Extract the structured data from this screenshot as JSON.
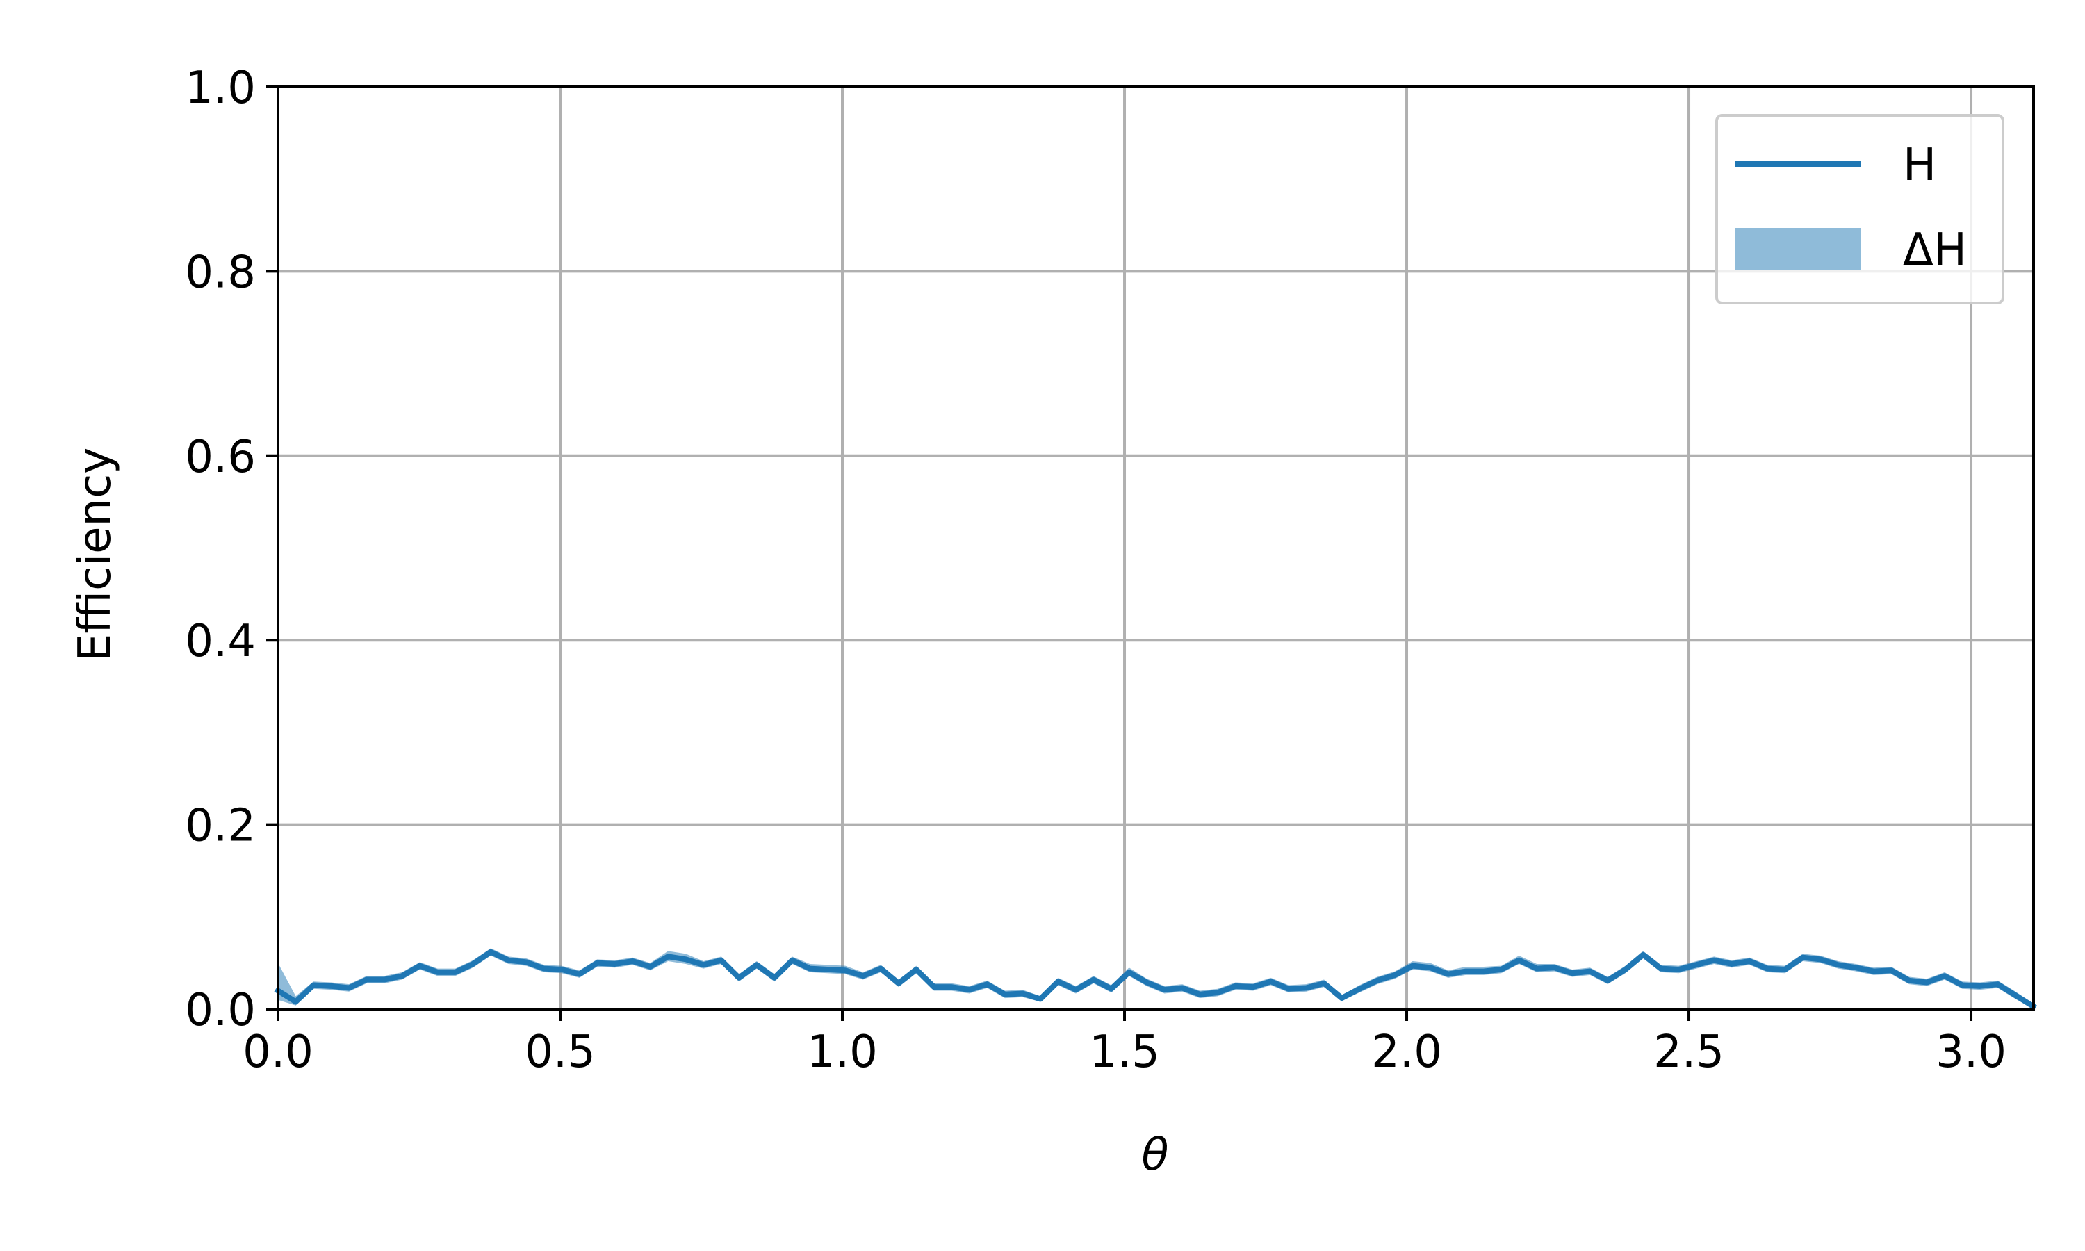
{
  "chart_data": {
    "type": "line",
    "title": "",
    "xlabel": "θ",
    "ylabel": "Efficiency",
    "xlim": [
      0,
      3.1108
    ],
    "ylim": [
      0,
      1
    ],
    "x_ticks": [
      0,
      0.5,
      1,
      1.5,
      2,
      2.5,
      3
    ],
    "x_tick_labels": [
      "0.0",
      "0.5",
      "1.0",
      "1.5",
      "2.0",
      "2.5",
      "3.0"
    ],
    "y_ticks": [
      0,
      0.2,
      0.4,
      0.6,
      0.8,
      1
    ],
    "y_tick_labels": [
      "0.0",
      "0.2",
      "0.4",
      "0.6",
      "0.8",
      "1.0"
    ],
    "grid": true,
    "legend_position": "top-right",
    "colors": {
      "line": "#1f77b4",
      "band": "#1f77b4",
      "grid": "#b0b0b0"
    },
    "x": [
      0,
      0.0314,
      0.0628,
      0.0942,
      0.1257,
      0.1571,
      0.1885,
      0.2199,
      0.2513,
      0.2827,
      0.3142,
      0.3456,
      0.377,
      0.4084,
      0.4398,
      0.4712,
      0.5027,
      0.5341,
      0.5655,
      0.5969,
      0.6283,
      0.6597,
      0.6912,
      0.7226,
      0.754,
      0.7854,
      0.8168,
      0.8482,
      0.8796,
      0.9111,
      0.9425,
      0.9739,
      1.0053,
      1.0367,
      1.0681,
      1.0996,
      1.131,
      1.1624,
      1.1938,
      1.2252,
      1.2566,
      1.2881,
      1.3195,
      1.3509,
      1.3823,
      1.4137,
      1.4451,
      1.4765,
      1.508,
      1.5394,
      1.5708,
      1.6022,
      1.6336,
      1.665,
      1.6965,
      1.7279,
      1.7593,
      1.7907,
      1.8221,
      1.8535,
      1.885,
      1.9164,
      1.9478,
      1.9792,
      2.0106,
      2.042,
      2.0735,
      2.1049,
      2.1363,
      2.1677,
      2.1991,
      2.2305,
      2.2619,
      2.2934,
      2.3248,
      2.3562,
      2.3876,
      2.419,
      2.4504,
      2.4819,
      2.5133,
      2.5447,
      2.5761,
      2.6075,
      2.6389,
      2.6704,
      2.7018,
      2.7332,
      2.7646,
      2.796,
      2.8274,
      2.8588,
      2.8903,
      2.9217,
      2.9531,
      2.9845,
      3.0159,
      3.0473,
      3.0788,
      3.1102
    ],
    "series": [
      {
        "name": "H",
        "values": [
          0.02,
          0.008,
          0.026,
          0.025,
          0.023,
          0.032,
          0.032,
          0.036,
          0.047,
          0.04,
          0.04,
          0.049,
          0.062,
          0.053,
          0.051,
          0.044,
          0.043,
          0.038,
          0.05,
          0.049,
          0.052,
          0.046,
          0.057,
          0.054,
          0.048,
          0.053,
          0.034,
          0.048,
          0.034,
          0.053,
          0.044,
          0.043,
          0.042,
          0.036,
          0.044,
          0.028,
          0.043,
          0.024,
          0.024,
          0.021,
          0.027,
          0.016,
          0.017,
          0.011,
          0.03,
          0.021,
          0.032,
          0.022,
          0.04,
          0.029,
          0.021,
          0.023,
          0.016,
          0.018,
          0.025,
          0.024,
          0.03,
          0.022,
          0.023,
          0.028,
          0.012,
          0.022,
          0.031,
          0.037,
          0.047,
          0.045,
          0.038,
          0.041,
          0.041,
          0.043,
          0.053,
          0.044,
          0.045,
          0.039,
          0.041,
          0.031,
          0.043,
          0.059,
          0.044,
          0.043,
          0.048,
          0.053,
          0.049,
          0.052,
          0.044,
          0.043,
          0.056,
          0.054,
          0.048,
          0.045,
          0.041,
          0.042,
          0.031,
          0.029,
          0.036,
          0.026,
          0.025,
          0.027,
          0.015,
          0.003
        ]
      },
      {
        "name": "ΔH",
        "lower": [
          0.01,
          0.004,
          0.022,
          0.021,
          0.019,
          0.028,
          0.028,
          0.032,
          0.043,
          0.036,
          0.036,
          0.045,
          0.058,
          0.049,
          0.047,
          0.04,
          0.039,
          0.034,
          0.046,
          0.045,
          0.048,
          0.042,
          0.052,
          0.049,
          0.044,
          0.049,
          0.03,
          0.044,
          0.03,
          0.049,
          0.04,
          0.039,
          0.038,
          0.032,
          0.04,
          0.024,
          0.039,
          0.02,
          0.02,
          0.017,
          0.023,
          0.012,
          0.013,
          0.008,
          0.026,
          0.017,
          0.028,
          0.018,
          0.036,
          0.025,
          0.017,
          0.019,
          0.012,
          0.014,
          0.021,
          0.02,
          0.026,
          0.018,
          0.019,
          0.024,
          0.009,
          0.018,
          0.027,
          0.033,
          0.043,
          0.041,
          0.034,
          0.037,
          0.037,
          0.039,
          0.049,
          0.04,
          0.041,
          0.035,
          0.037,
          0.027,
          0.039,
          0.055,
          0.04,
          0.039,
          0.044,
          0.049,
          0.045,
          0.048,
          0.04,
          0.039,
          0.052,
          0.05,
          0.044,
          0.041,
          0.037,
          0.038,
          0.027,
          0.025,
          0.032,
          0.022,
          0.021,
          0.023,
          0.011,
          0.001
        ],
        "upper": [
          0.05,
          0.014,
          0.03,
          0.029,
          0.027,
          0.036,
          0.036,
          0.04,
          0.051,
          0.044,
          0.044,
          0.053,
          0.066,
          0.057,
          0.055,
          0.048,
          0.047,
          0.042,
          0.054,
          0.053,
          0.056,
          0.05,
          0.063,
          0.06,
          0.052,
          0.057,
          0.038,
          0.052,
          0.038,
          0.057,
          0.049,
          0.048,
          0.047,
          0.04,
          0.048,
          0.032,
          0.047,
          0.028,
          0.028,
          0.025,
          0.031,
          0.02,
          0.021,
          0.014,
          0.034,
          0.025,
          0.036,
          0.026,
          0.045,
          0.033,
          0.025,
          0.027,
          0.02,
          0.022,
          0.029,
          0.028,
          0.034,
          0.026,
          0.027,
          0.032,
          0.015,
          0.026,
          0.035,
          0.041,
          0.052,
          0.05,
          0.042,
          0.046,
          0.046,
          0.047,
          0.058,
          0.049,
          0.049,
          0.043,
          0.045,
          0.035,
          0.047,
          0.063,
          0.048,
          0.047,
          0.052,
          0.057,
          0.053,
          0.056,
          0.048,
          0.047,
          0.06,
          0.058,
          0.052,
          0.049,
          0.045,
          0.046,
          0.035,
          0.033,
          0.04,
          0.03,
          0.029,
          0.031,
          0.019,
          0.006
        ]
      }
    ]
  }
}
